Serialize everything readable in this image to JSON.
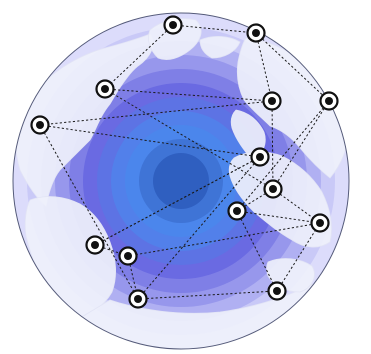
{
  "map": {
    "projection": "azimuthal-equidistant",
    "ring_count": 11,
    "colors": {
      "ocean_rings": [
        "#dcdcfb",
        "#c9c9f7",
        "#b0b0f2",
        "#9797ec",
        "#7f7fe6",
        "#6a6ae2",
        "#5d73e4",
        "#5280ea",
        "#4b86ec",
        "#3f74d6",
        "#2f5fc0"
      ],
      "land": "#eef0fb",
      "land_edge": "#e2e4f5",
      "outer_stroke": "#555b7a",
      "route": "#1b1b1b",
      "node_fill": "#ffffff",
      "node_ring": "#111111",
      "node_center": "#111111"
    }
  },
  "nodes": [
    {
      "id": "n1",
      "icon": "location-marker-icon"
    },
    {
      "id": "n2",
      "icon": "location-marker-icon"
    },
    {
      "id": "n3",
      "icon": "location-marker-icon"
    },
    {
      "id": "n4",
      "icon": "location-marker-icon"
    },
    {
      "id": "n5",
      "icon": "location-marker-icon"
    },
    {
      "id": "n6",
      "icon": "location-marker-icon"
    },
    {
      "id": "n7",
      "icon": "location-marker-icon"
    },
    {
      "id": "n8",
      "icon": "location-marker-icon"
    },
    {
      "id": "n9",
      "icon": "location-marker-icon"
    },
    {
      "id": "n10",
      "icon": "location-marker-icon"
    },
    {
      "id": "n11",
      "icon": "location-marker-icon"
    },
    {
      "id": "n12",
      "icon": "location-marker-icon"
    },
    {
      "id": "n13",
      "icon": "location-marker-icon"
    },
    {
      "id": "n14",
      "icon": "location-marker-icon"
    }
  ],
  "routes": [
    [
      "n1",
      "n2"
    ],
    [
      "n2",
      "n4"
    ],
    [
      "n2",
      "n5"
    ],
    [
      "n1",
      "n3"
    ],
    [
      "n3",
      "n5"
    ],
    [
      "n3",
      "n8"
    ],
    [
      "n5",
      "n8"
    ],
    [
      "n5",
      "n6"
    ],
    [
      "n6",
      "n7"
    ],
    [
      "n7",
      "n11"
    ],
    [
      "n11",
      "n12"
    ],
    [
      "n6",
      "n13"
    ],
    [
      "n7",
      "n13"
    ],
    [
      "n8",
      "n9"
    ],
    [
      "n8",
      "n10"
    ],
    [
      "n9",
      "n10"
    ],
    [
      "n9",
      "n14"
    ],
    [
      "n14",
      "n10"
    ],
    [
      "n10",
      "n12"
    ],
    [
      "n12",
      "n13"
    ],
    [
      "n4",
      "n8"
    ],
    [
      "n4",
      "n9"
    ],
    [
      "n13",
      "n14"
    ],
    [
      "n11",
      "n7"
    ]
  ]
}
